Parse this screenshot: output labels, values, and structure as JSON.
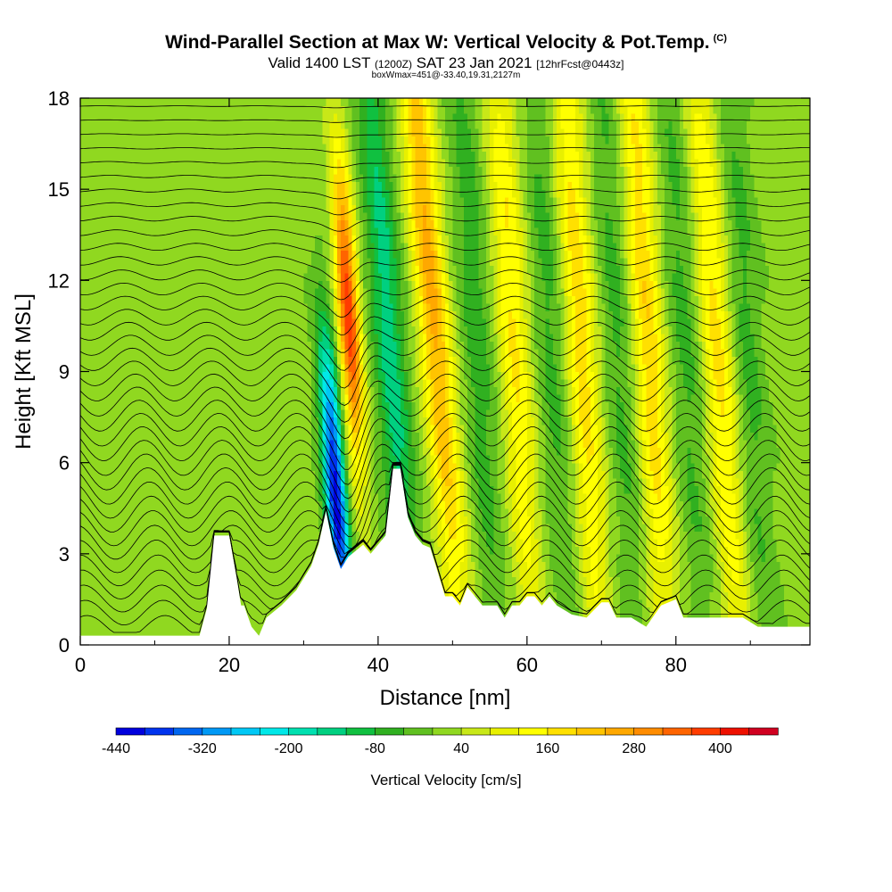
{
  "header": {
    "title": "Wind-Parallel Section at Max W: Vertical Velocity & Pot.Temp.",
    "title_mark": "(C)",
    "valid_prefix": "Valid 1400 LST",
    "valid_zulu": "(1200Z)",
    "valid_date": "SAT 23 Jan 2021",
    "forecast": "[12hrFcst@0443z]",
    "box_info": "boxWmax=451@-33.40,19.31,2127m"
  },
  "chart_data": {
    "type": "heatmap",
    "xlabel": "Distance [nm]",
    "ylabel": "Height [Kft MSL]",
    "xlim": [
      0,
      98
    ],
    "ylim": [
      0,
      18
    ],
    "x_ticks": [
      "0",
      "20",
      "40",
      "60",
      "80"
    ],
    "y_ticks": [
      "0",
      "3",
      "6",
      "9",
      "12",
      "15",
      "18"
    ],
    "colorbar": {
      "label": "Vertical Velocity [cm/s]",
      "tick_labels": [
        "-440",
        "-320",
        "-200",
        "-80",
        "40",
        "160",
        "280",
        "400"
      ],
      "levels": [
        -440,
        -400,
        -360,
        -320,
        -280,
        -240,
        -200,
        -160,
        -120,
        -80,
        -40,
        0,
        40,
        80,
        120,
        160,
        200,
        240,
        280,
        320,
        360,
        400,
        440,
        480
      ],
      "colors": [
        "#0000dd",
        "#0033ee",
        "#0066f0",
        "#0099f5",
        "#00c8f5",
        "#00e8e8",
        "#00e0b0",
        "#00d080",
        "#10c040",
        "#30b020",
        "#60c020",
        "#90d820",
        "#c8e818",
        "#e8f000",
        "#ffff00",
        "#ffe000",
        "#ffc400",
        "#ffa800",
        "#ff8c00",
        "#ff6400",
        "#ff3c00",
        "#ee1000",
        "#d00020"
      ]
    },
    "terrain_kft": [
      [
        0,
        0.3
      ],
      [
        8,
        0.3
      ],
      [
        16,
        0.3
      ],
      [
        17,
        1.2
      ],
      [
        18,
        3.6
      ],
      [
        20,
        3.6
      ],
      [
        21,
        2.2
      ],
      [
        21.6,
        1.3
      ],
      [
        22,
        1.3
      ],
      [
        23,
        0.6
      ],
      [
        24,
        0.3
      ],
      [
        25,
        0.9
      ],
      [
        27,
        1.3
      ],
      [
        29,
        1.8
      ],
      [
        31,
        2.6
      ],
      [
        32,
        3.3
      ],
      [
        33,
        4.4
      ],
      [
        34,
        3.2
      ],
      [
        35,
        2.5
      ],
      [
        36,
        2.9
      ],
      [
        38,
        3.3
      ],
      [
        39,
        3.0
      ],
      [
        41,
        3.6
      ],
      [
        42,
        5.8
      ],
      [
        43,
        5.8
      ],
      [
        44,
        4.2
      ],
      [
        45,
        3.6
      ],
      [
        46,
        3.3
      ],
      [
        47,
        3.2
      ],
      [
        48,
        2.4
      ],
      [
        49,
        1.6
      ],
      [
        50,
        1.6
      ],
      [
        51,
        1.3
      ],
      [
        52,
        1.9
      ],
      [
        53,
        1.6
      ],
      [
        54,
        1.3
      ],
      [
        56,
        1.3
      ],
      [
        57,
        0.9
      ],
      [
        58,
        1.3
      ],
      [
        59,
        1.3
      ],
      [
        60,
        1.6
      ],
      [
        61,
        1.6
      ],
      [
        62,
        1.3
      ],
      [
        63,
        1.6
      ],
      [
        64,
        1.3
      ],
      [
        66,
        1.0
      ],
      [
        68,
        0.9
      ],
      [
        70,
        1.4
      ],
      [
        71,
        1.4
      ],
      [
        72,
        0.9
      ],
      [
        74,
        0.9
      ],
      [
        76,
        0.6
      ],
      [
        78,
        1.3
      ],
      [
        80,
        1.5
      ],
      [
        81,
        0.9
      ],
      [
        83,
        0.9
      ],
      [
        86,
        0.9
      ],
      [
        89,
        0.9
      ],
      [
        91,
        0.6
      ],
      [
        92,
        0.6
      ],
      [
        95,
        0.6
      ],
      [
        96,
        0.6
      ],
      [
        98,
        0.6
      ]
    ],
    "updraft_bands": [
      {
        "x0": 36.0,
        "z0": 11.0,
        "tilt_nm_per_kft": -0.25,
        "peak_cms": 380
      },
      {
        "x0": 47.0,
        "z0": 12.0,
        "tilt_nm_per_kft": -0.35,
        "peak_cms": 240
      },
      {
        "x0": 58.0,
        "z0": 11.0,
        "tilt_nm_per_kft": -0.25,
        "peak_cms": 150
      },
      {
        "x0": 67.0,
        "z0": 11.0,
        "tilt_nm_per_kft": -0.25,
        "peak_cms": 170
      },
      {
        "x0": 76.0,
        "z0": 11.0,
        "tilt_nm_per_kft": -0.25,
        "peak_cms": 180
      },
      {
        "x0": 85.5,
        "z0": 10.0,
        "tilt_nm_per_kft": -0.3,
        "peak_cms": 160
      }
    ],
    "downdraft_bands": [
      {
        "x0": 34.3,
        "z0": 5.0,
        "tilt_nm_per_kft": -0.28,
        "peak_cms": -440
      },
      {
        "x0": 41.5,
        "z0": 10.0,
        "tilt_nm_per_kft": -0.3,
        "peak_cms": -160
      },
      {
        "x0": 53.0,
        "z0": 11.0,
        "tilt_nm_per_kft": -0.25,
        "peak_cms": -80
      },
      {
        "x0": 63.0,
        "z0": 11.0,
        "tilt_nm_per_kft": -0.25,
        "peak_cms": -70
      },
      {
        "x0": 72.0,
        "z0": 11.0,
        "tilt_nm_per_kft": -0.25,
        "peak_cms": -70
      },
      {
        "x0": 81.0,
        "z0": 11.0,
        "tilt_nm_per_kft": -0.25,
        "peak_cms": -70
      },
      {
        "x0": 89.5,
        "z0": 10.0,
        "tilt_nm_per_kft": -0.25,
        "peak_cms": -70
      }
    ],
    "isentrope_count": 38
  }
}
